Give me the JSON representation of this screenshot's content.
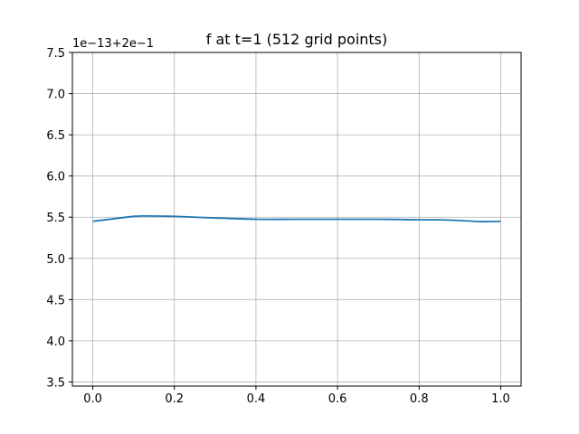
{
  "chart_data": {
    "type": "line",
    "title": "f at t=1 (512 grid points)",
    "xlabel": "",
    "ylabel": "",
    "y_offset_label": "1e−13+2e−1",
    "xlim": [
      -0.05,
      1.05
    ],
    "ylim": [
      3.45,
      7.5
    ],
    "xticks": [
      0.0,
      0.2,
      0.4,
      0.6,
      0.8,
      1.0
    ],
    "xtick_labels": [
      "0.0",
      "0.2",
      "0.4",
      "0.6",
      "0.8",
      "1.0"
    ],
    "yticks": [
      3.5,
      4.0,
      4.5,
      5.0,
      5.5,
      6.0,
      6.5,
      7.0,
      7.5
    ],
    "ytick_labels": [
      "3.5",
      "4.0",
      "4.5",
      "5.0",
      "5.5",
      "6.0",
      "6.5",
      "7.0",
      "7.5"
    ],
    "grid": true,
    "line_color": "#1f77b4",
    "series": [
      {
        "x": [
          0.0,
          0.05,
          0.1,
          0.13,
          0.2,
          0.3,
          0.4,
          0.5,
          0.6,
          0.7,
          0.75,
          0.8,
          0.85,
          0.9,
          0.95,
          1.0
        ],
        "values": [
          5.45,
          5.48,
          5.51,
          5.515,
          5.51,
          5.49,
          5.475,
          5.475,
          5.475,
          5.475,
          5.472,
          5.468,
          5.468,
          5.46,
          5.447,
          5.45
        ]
      }
    ]
  }
}
